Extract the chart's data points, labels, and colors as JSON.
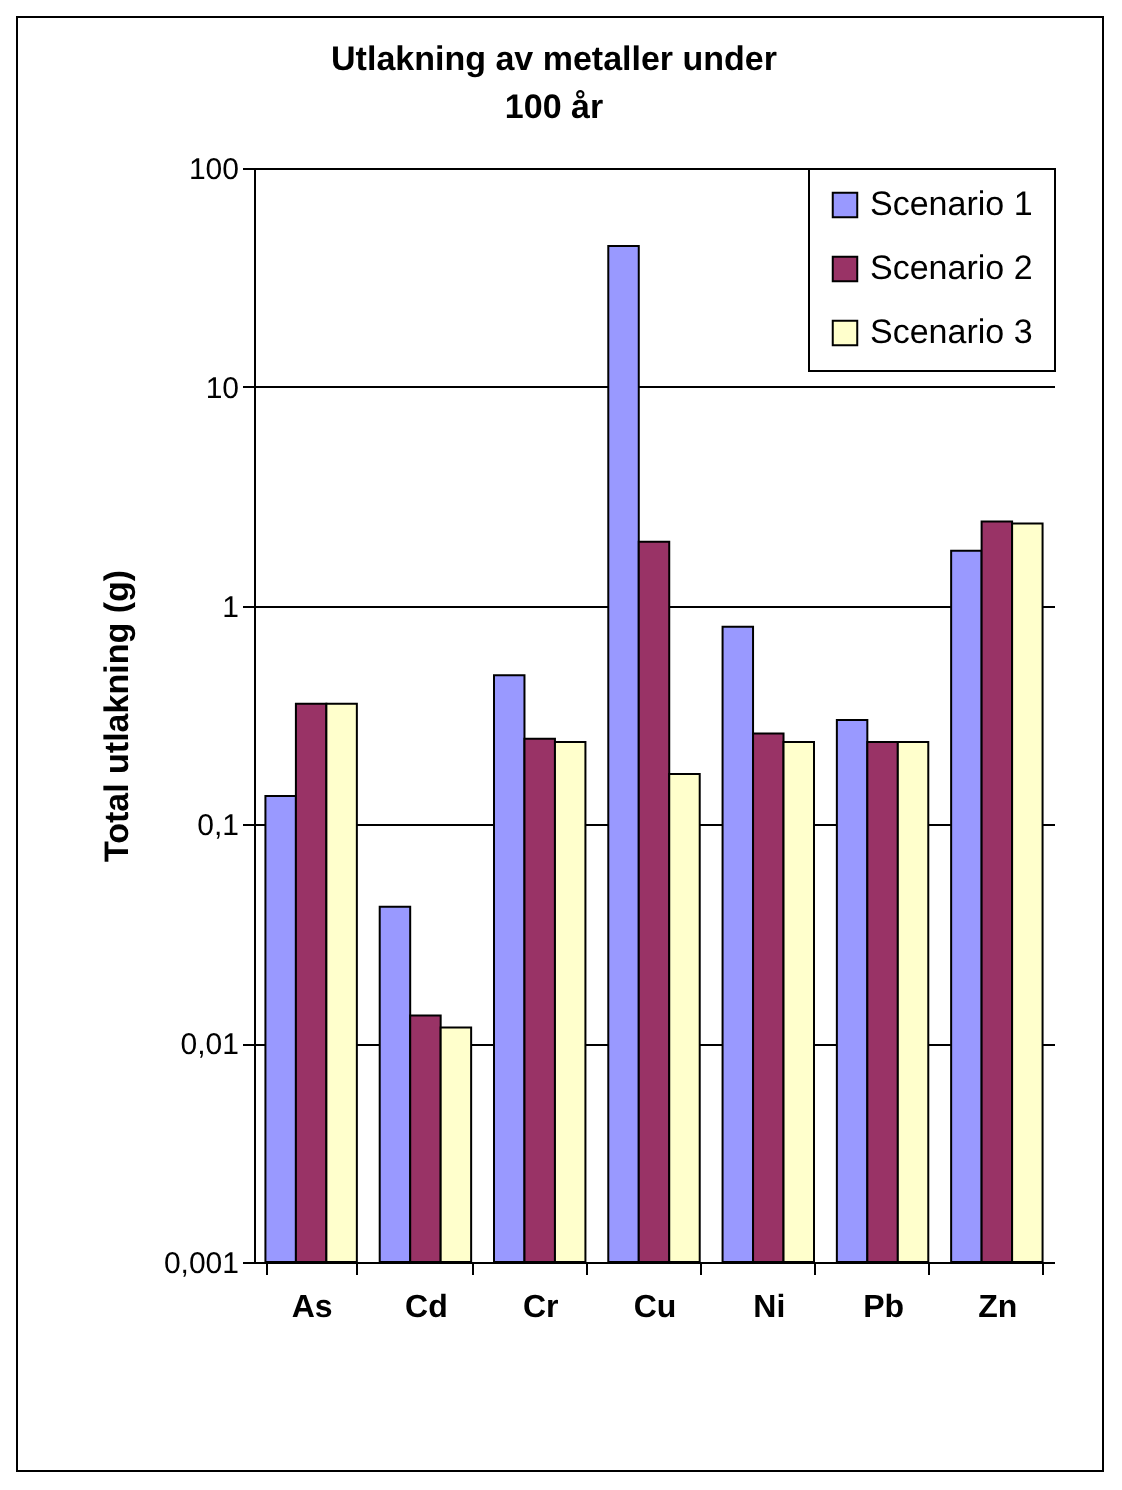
{
  "chart_data": {
    "type": "bar",
    "title": "Utlakning av metaller under 100 år",
    "ylabel": "Total utlakning (g)",
    "categories": [
      "As",
      "Cd",
      "Cr",
      "Cu",
      "Ni",
      "Pb",
      "Zn"
    ],
    "series": [
      {
        "name": "Scenario 1",
        "color": "#9999ff",
        "values": [
          0.135,
          0.042,
          0.48,
          44,
          0.8,
          0.3,
          1.78
        ]
      },
      {
        "name": "Scenario 2",
        "color": "#993366",
        "values": [
          0.356,
          0.0134,
          0.246,
          1.96,
          0.26,
          0.238,
          2.42
        ]
      },
      {
        "name": "Scenario 3",
        "color": "#ffffcc",
        "values": [
          0.356,
          0.0118,
          0.238,
          0.17,
          0.238,
          0.238,
          2.37
        ]
      }
    ],
    "log": "y",
    "ylim": [
      0.001,
      100
    ],
    "yticks": [
      {
        "value": 0.001,
        "label": "0,001"
      },
      {
        "value": 0.01,
        "label": "0,01"
      },
      {
        "value": 0.1,
        "label": "0,1"
      },
      1,
      10,
      100
    ],
    "grid": "y",
    "legend": "top right"
  }
}
